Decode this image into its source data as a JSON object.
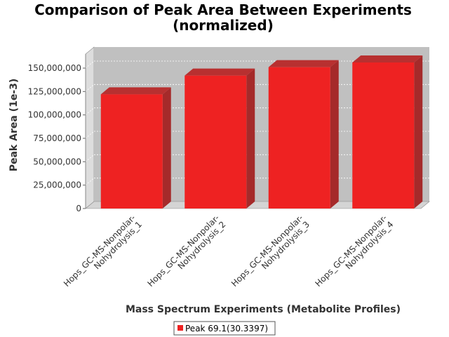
{
  "chart_data": {
    "type": "bar",
    "title": "Comparison of Peak Area Between Experiments",
    "subtitle": "(normalized)",
    "xlabel": "Mass Spectrum Experiments (Metabolite Profiles)",
    "ylabel": "Peak Area (1e-3)",
    "categories": [
      [
        "Hops_GC-MS-Nonpolar-",
        "Nohydrolysis_1"
      ],
      [
        "Hops_GC-MS-Nonpolar-",
        "Nohydrolysis_2"
      ],
      [
        "Hops_GC-MS-Nonpolar-",
        "Nohydrolysis_3"
      ],
      [
        "Hops_GC-MS-Nonpolar-",
        "Nohydrolysis_4"
      ]
    ],
    "series": [
      {
        "name": "Peak 69.1(30.3397)",
        "color": "#ee2222",
        "values": [
          122000000,
          142000000,
          151000000,
          156000000
        ]
      }
    ],
    "yticks": [
      0,
      25000000,
      50000000,
      75000000,
      100000000,
      125000000,
      150000000
    ],
    "ytick_labels": [
      "0",
      "25,000,000",
      "50,000,000",
      "75,000,000",
      "100,000,000",
      "125,000,000",
      "150,000,000"
    ],
    "ylim": [
      0,
      165000000
    ],
    "grid": true,
    "legend_position": "bottom",
    "plot_background": "#c0c0c0"
  }
}
